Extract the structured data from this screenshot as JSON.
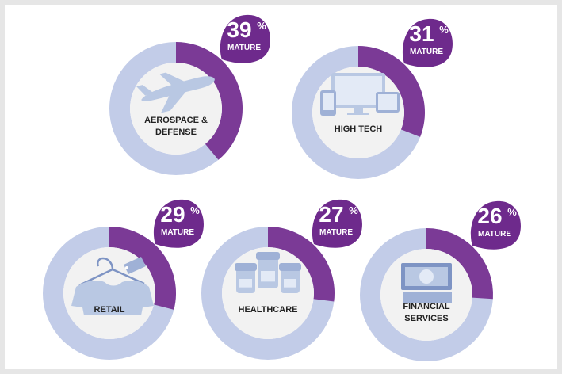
{
  "chart_data": {
    "type": "pie",
    "unit": "%",
    "status_label": "MATURE",
    "colors": {
      "mature": "#7b3a96",
      "remainder": "#c2cce8",
      "badge": "#6e2a8c",
      "inner": "#f2f2f2",
      "icon": "#b9c8e3",
      "icon_dark": "#9fb1d6"
    },
    "items": [
      {
        "category_lines": [
          "AEROSPACE &",
          "DEFENSE"
        ],
        "value": 39,
        "icon": "airplane-icon"
      },
      {
        "category_lines": [
          "HIGH TECH"
        ],
        "value": 31,
        "icon": "devices-icon"
      },
      {
        "category_lines": [
          "RETAIL"
        ],
        "value": 29,
        "icon": "shirt-hanger-icon"
      },
      {
        "category_lines": [
          "HEALTHCARE"
        ],
        "value": 27,
        "icon": "pill-bottles-icon"
      },
      {
        "category_lines": [
          "FINANCIAL",
          "SERVICES"
        ],
        "value": 26,
        "icon": "banknotes-icon"
      }
    ]
  }
}
